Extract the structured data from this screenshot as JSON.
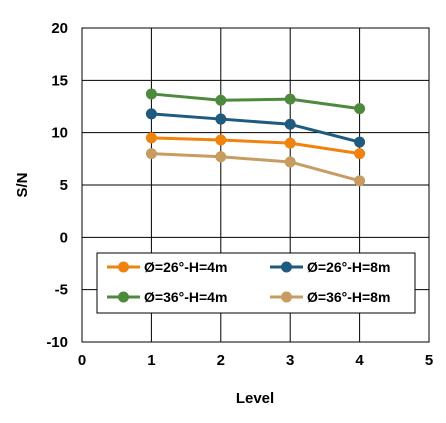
{
  "chart_data": {
    "type": "line",
    "title": "",
    "xlabel": "Level",
    "ylabel": "S/N",
    "xlim": [
      0,
      5
    ],
    "ylim": [
      -10,
      20
    ],
    "xticks": [
      "0",
      "1",
      "2",
      "3",
      "4",
      "5"
    ],
    "yticks": [
      "-10",
      "-5",
      "0",
      "5",
      "10",
      "15",
      "20"
    ],
    "grid": true,
    "legend_position": "lower-center",
    "x": [
      1,
      2,
      3,
      4
    ],
    "series": [
      {
        "name": "Ø=26°-H=4m",
        "color": "#F0820F",
        "values": [
          9.5,
          9.3,
          9.0,
          8.0
        ]
      },
      {
        "name": "Ø=26°-H=8m",
        "color": "#1F5A7F",
        "values": [
          11.8,
          11.3,
          10.8,
          9.1
        ]
      },
      {
        "name": "Ø=36°-H=4m",
        "color": "#4E8A3E",
        "values": [
          13.7,
          13.1,
          13.2,
          12.3
        ]
      },
      {
        "name": "Ø=36°-H=8m",
        "color": "#C89C60",
        "values": [
          8.0,
          7.7,
          7.2,
          5.4
        ]
      }
    ]
  }
}
